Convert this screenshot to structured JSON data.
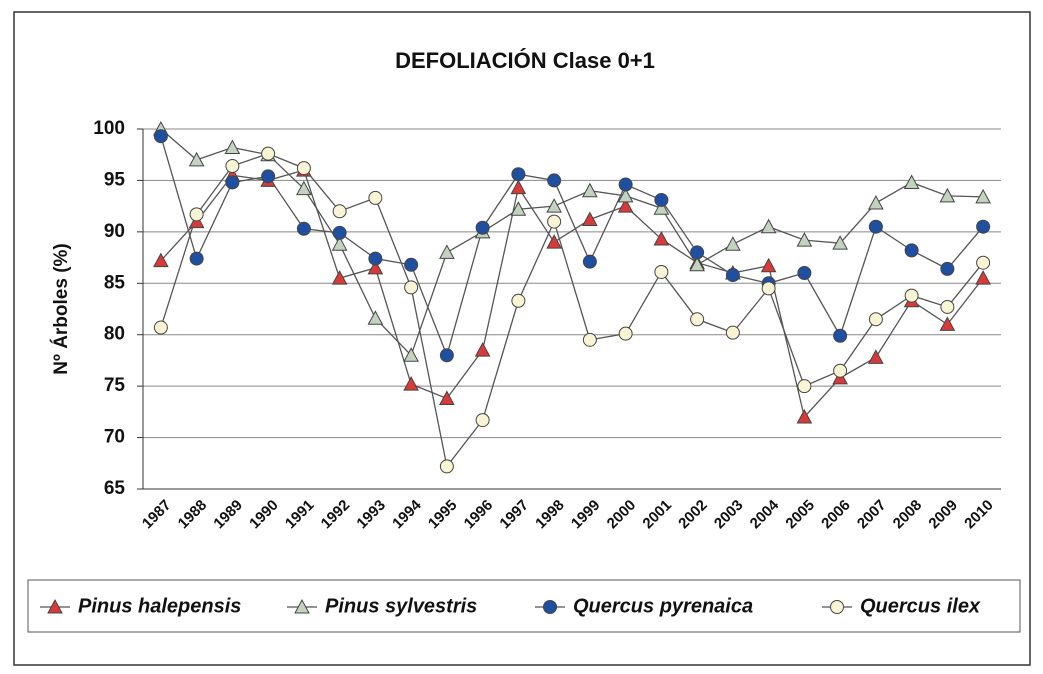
{
  "chart_data": {
    "type": "line",
    "title": "DEFOLIACIÓN Clase 0+1",
    "y_label": "Nº Árboles (%)",
    "categories": [
      "1987",
      "1988",
      "1989",
      "1990",
      "1991",
      "1992",
      "1993",
      "1994",
      "1995",
      "1996",
      "1997",
      "1998",
      "1999",
      "2000",
      "2001",
      "2002",
      "2003",
      "2004",
      "2005",
      "2006",
      "2007",
      "2008",
      "2009",
      "2010"
    ],
    "ylim": [
      65,
      100
    ],
    "yticks": [
      65,
      70,
      75,
      80,
      85,
      90,
      95,
      100
    ],
    "grid": true,
    "legend": "bottom",
    "series": [
      {
        "name": "Pinus halepensis",
        "color": "#d83a3a",
        "marker": "triangle",
        "values": [
          87.2,
          91,
          95.5,
          95,
          96,
          85.5,
          86.5,
          75.2,
          73.8,
          78.5,
          94.3,
          89,
          91.2,
          92.5,
          89.3,
          87,
          86,
          86.7,
          72,
          75.8,
          77.8,
          83.3,
          81,
          85.5
        ]
      },
      {
        "name": "Pinus sylvestris",
        "color": "#c4d3c0",
        "marker": "triangle",
        "values": [
          100,
          97,
          98.2,
          97.5,
          94.2,
          88.8,
          81.6,
          78,
          88,
          90,
          92.2,
          92.5,
          94,
          93.5,
          92.3,
          86.8,
          88.8,
          90.5,
          89.2,
          88.9,
          92.8,
          94.8,
          93.5,
          93.4
        ]
      },
      {
        "name": "Quercus pyrenaica",
        "color": "#1f4fa0",
        "marker": "circle",
        "values": [
          99.3,
          87.4,
          94.8,
          95.4,
          90.3,
          89.9,
          87.4,
          86.8,
          78,
          90.4,
          95.6,
          95,
          87.1,
          94.6,
          93.1,
          88,
          85.8,
          85,
          86,
          79.9,
          90.5,
          88.2,
          86.4,
          90.5
        ]
      },
      {
        "name": "Quercus ilex",
        "color": "#f8f4d4",
        "marker": "circle",
        "values": [
          80.7,
          91.7,
          96.4,
          97.6,
          96.2,
          92,
          93.3,
          84.6,
          67.2,
          71.7,
          83.3,
          91,
          79.5,
          80.1,
          86.1,
          81.5,
          80.2,
          84.5,
          75,
          76.5,
          81.5,
          83.8,
          82.7,
          87
        ]
      }
    ]
  }
}
